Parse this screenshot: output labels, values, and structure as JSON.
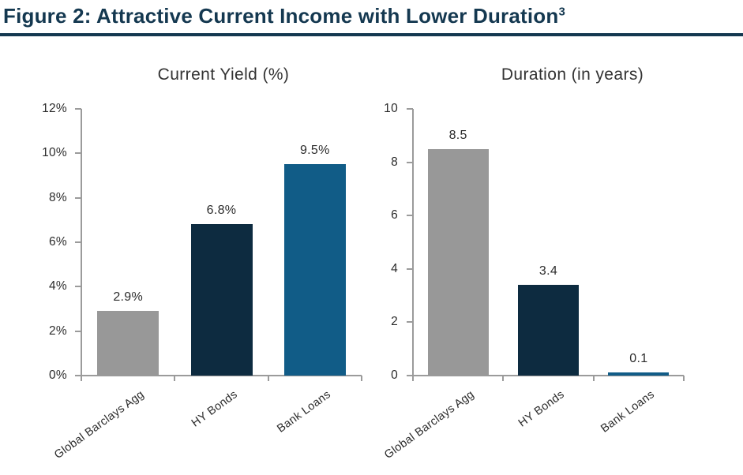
{
  "figure": {
    "title": "Figure 2: Attractive Current Income with Lower Duration",
    "footnote_marker": "3"
  },
  "colors": {
    "title_navy": "#143850",
    "rule_navy": "#143850",
    "axis_gray": "#9B9B9B",
    "label_text": "#2B2B2B",
    "chart_title_text": "#333333",
    "bar_gray": "#989898",
    "bar_navy": "#0D2B40",
    "bar_blue": "#115C87"
  },
  "chart_data": [
    {
      "type": "bar",
      "title": "Current Yield (%)",
      "categories": [
        "Global Barclays Agg",
        "HY Bonds",
        "Bank Loans"
      ],
      "values": [
        2.9,
        6.8,
        9.5
      ],
      "value_labels": [
        "2.9%",
        "6.8%",
        "9.5%"
      ],
      "bar_colors": [
        "#989898",
        "#0D2B40",
        "#115C87"
      ],
      "ylim": [
        0,
        12
      ],
      "ytick_step": 2,
      "ytick_labels": [
        "0%",
        "2%",
        "4%",
        "6%",
        "8%",
        "10%",
        "12%"
      ],
      "xlabel": "",
      "ylabel": "",
      "grid": false,
      "legend": "none"
    },
    {
      "type": "bar",
      "title": "Duration (in years)",
      "categories": [
        "Global Barclays Agg",
        "HY Bonds",
        "Bank Loans"
      ],
      "values": [
        8.5,
        3.4,
        0.1
      ],
      "value_labels": [
        "8.5",
        "3.4",
        "0.1"
      ],
      "bar_colors": [
        "#989898",
        "#0D2B40",
        "#115C87"
      ],
      "ylim": [
        0,
        10
      ],
      "ytick_step": 2,
      "ytick_labels": [
        "0",
        "2",
        "4",
        "6",
        "8",
        "10"
      ],
      "xlabel": "",
      "ylabel": "",
      "grid": false,
      "legend": "none"
    }
  ]
}
